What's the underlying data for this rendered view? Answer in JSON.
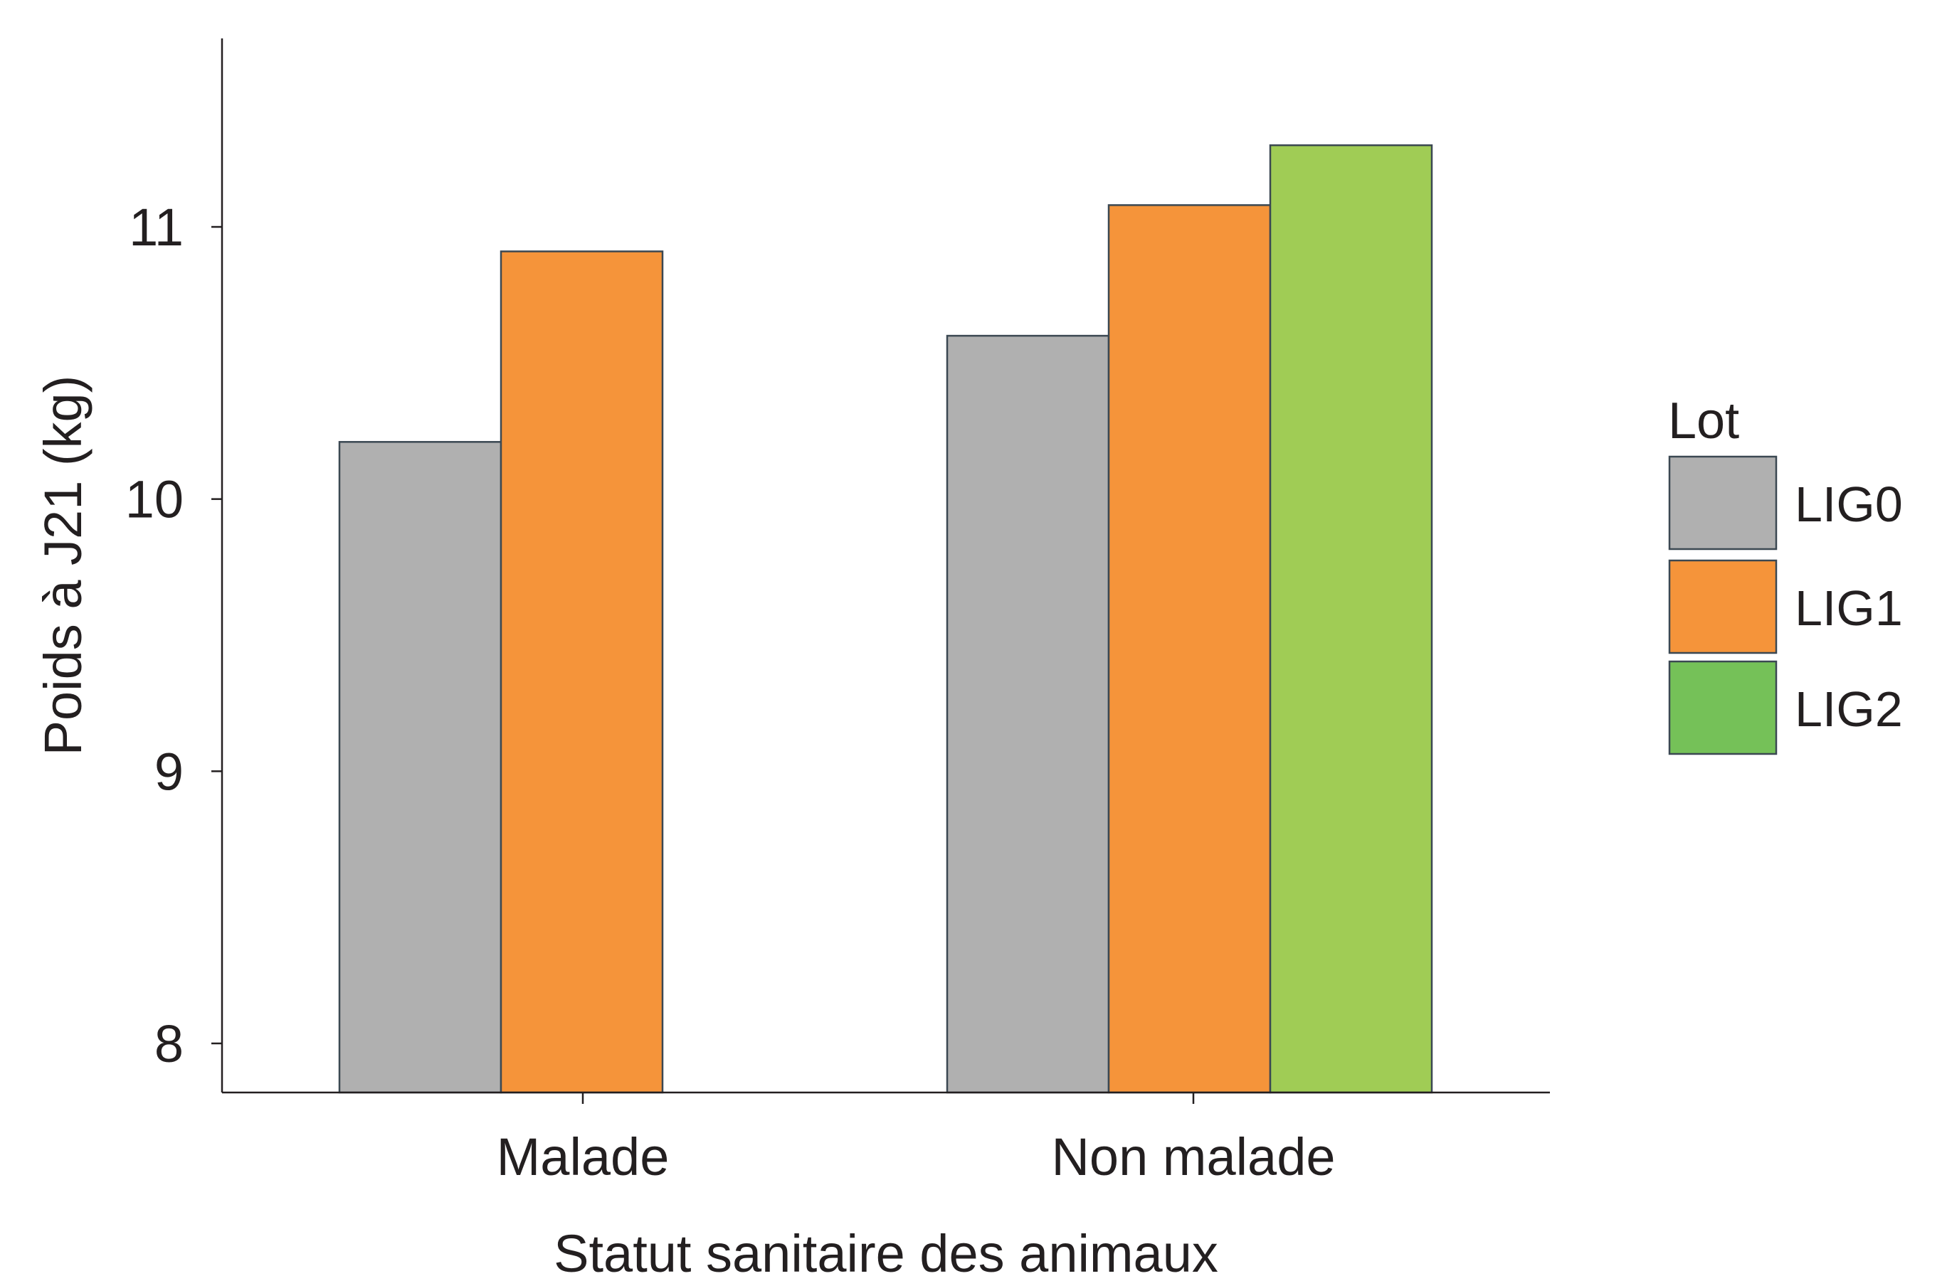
{
  "chart_data": {
    "type": "bar",
    "categories": [
      "Malade",
      "Non malade"
    ],
    "series": [
      {
        "name": "LIG0",
        "color": "#b0b0b0",
        "values": [
          10.21,
          10.6
        ]
      },
      {
        "name": "LIG1",
        "color": "#f5943a",
        "values": [
          10.91,
          11.08
        ]
      },
      {
        "name": "LIG2",
        "color": "#a0cc55",
        "values": [
          null,
          11.3
        ]
      }
    ],
    "xlabel": "Statut sanitaire des animaux",
    "ylabel": "Poids à J21 (kg)",
    "yticks": [
      "8",
      "9",
      "10",
      "11"
    ],
    "ylim": [
      7.82,
      11.7
    ],
    "legend": {
      "title": "Lot",
      "placement": "right",
      "swatch_colors": [
        "#b0b0b0",
        "#f5943a",
        "#75c158"
      ]
    },
    "grid": false,
    "bar_stroke_color": "#3b4852",
    "axis_color": "#231f20"
  }
}
